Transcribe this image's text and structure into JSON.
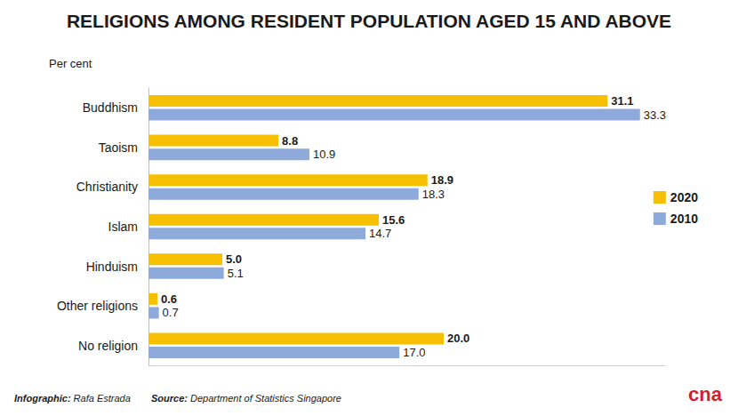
{
  "chart_data": {
    "type": "bar",
    "orientation": "horizontal",
    "title": "RELIGIONS AMONG RESIDENT POPULATION AGED 15 AND ABOVE",
    "subtitle": "Per cent",
    "categories": [
      "Buddhism",
      "Taoism",
      "Christianity",
      "Islam",
      "Hinduism",
      "Other religions",
      "No religion"
    ],
    "series": [
      {
        "name": "2020",
        "color": "#f6bf00",
        "values": [
          31.1,
          8.8,
          18.9,
          15.6,
          5.0,
          0.6,
          20.0
        ],
        "value_labels": [
          "31.1",
          "8.8",
          "18.9",
          "15.6",
          "5.0",
          "0.6",
          "20.0"
        ]
      },
      {
        "name": "2010",
        "color": "#8eaadb",
        "values": [
          33.3,
          10.9,
          18.3,
          14.7,
          5.1,
          0.7,
          17.0
        ],
        "value_labels": [
          "33.3",
          "10.9",
          "18.3",
          "14.7",
          "5.1",
          "0.7",
          "17.0"
        ]
      }
    ],
    "xlim": [
      0,
      35
    ],
    "grid": false,
    "legend": "right",
    "data_labels": true,
    "tick_labels": "y",
    "annotations": [
      "Infographic: Rafa Estrada",
      "Source: Department of Statistics Singapore",
      "cna"
    ]
  }
}
